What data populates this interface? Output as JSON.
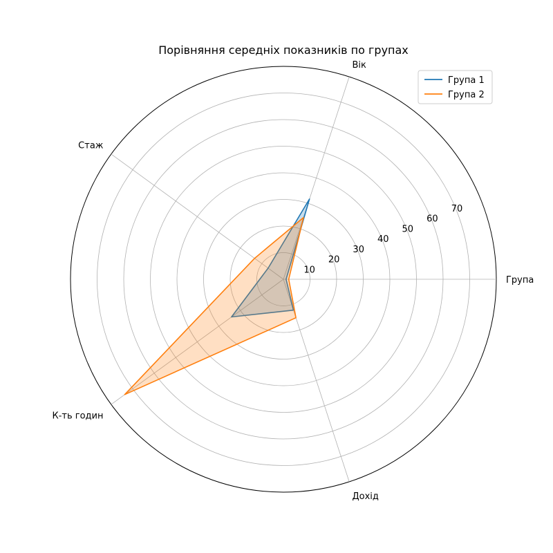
{
  "chart_data": {
    "type": "radar",
    "title": "Порівняння середніх показників по групах",
    "categories": [
      "Група",
      "Вік",
      "Стаж",
      "К-ть годин",
      "Дохід"
    ],
    "series": [
      {
        "name": "Група 1",
        "values": [
          1,
          31.7,
          7.1,
          24.1,
          12.2
        ],
        "color": "#1f77b4"
      },
      {
        "name": "Група 2",
        "values": [
          2,
          24.4,
          13.4,
          73.7,
          15.2
        ],
        "color": "#ff7f0e"
      }
    ],
    "rlim": [
      0,
      80
    ],
    "rticks": [
      10,
      20,
      30,
      40,
      50,
      60,
      70
    ],
    "grid": true,
    "legend": "top-right"
  }
}
